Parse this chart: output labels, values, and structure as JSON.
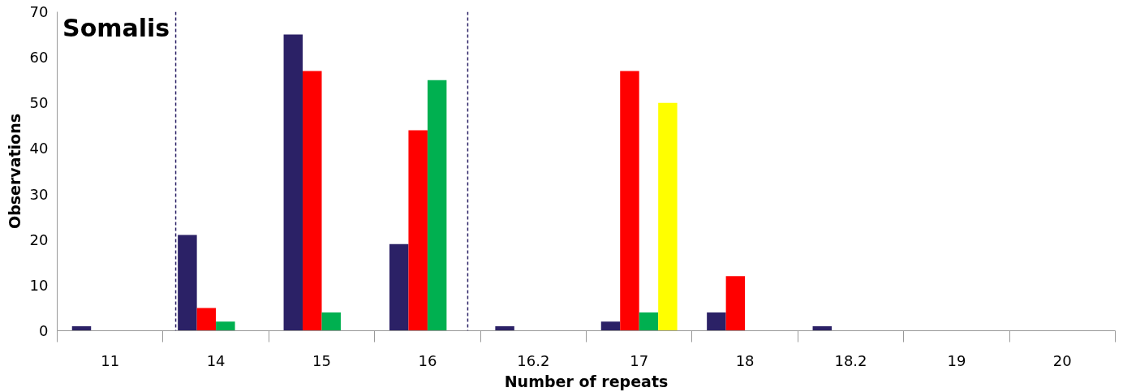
{
  "chart_data": {
    "type": "bar",
    "title": "Somalis",
    "xlabel": "Number of repeats",
    "ylabel": "Observations",
    "categories": [
      "11",
      "14",
      "15",
      "16",
      "16.2",
      "17",
      "18",
      "18.2",
      "19",
      "20"
    ],
    "series": [
      {
        "color": "#2b2166",
        "values": [
          1,
          21,
          65,
          19,
          1,
          2,
          4,
          1,
          0,
          0
        ]
      },
      {
        "color": "#ff0000",
        "values": [
          0,
          5,
          57,
          44,
          0,
          57,
          12,
          0,
          0,
          0
        ]
      },
      {
        "color": "#00b050",
        "values": [
          0,
          2,
          4,
          55,
          0,
          4,
          0,
          0,
          0,
          0
        ]
      },
      {
        "color": "#ffff00",
        "values": [
          0,
          0,
          0,
          0,
          0,
          50,
          0,
          0,
          0,
          0
        ]
      }
    ],
    "ylim": [
      0,
      70
    ],
    "yticks": [
      0,
      10,
      20,
      30,
      40,
      50,
      60,
      70
    ],
    "ref_lines": [
      {
        "axis": "x",
        "value": "14",
        "color": "#2b2166",
        "line_style": "dashed"
      },
      {
        "axis": "x",
        "value": "16",
        "color": "#2b2166",
        "line_style": "dashed"
      }
    ],
    "grid": false
  }
}
